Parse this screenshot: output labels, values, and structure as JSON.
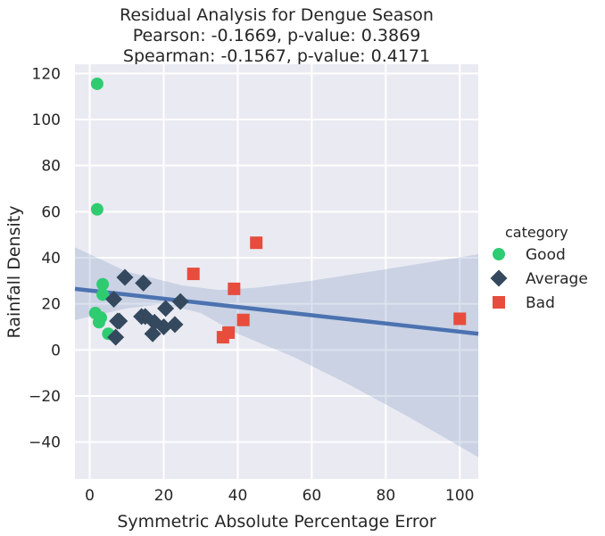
{
  "chart_data": {
    "type": "scatter",
    "title_lines": [
      "Residual Analysis for Dengue Season",
      "Pearson: -0.1669, p-value: 0.3869",
      "Spearman: -0.1567, p-value: 0.4171"
    ],
    "xlabel": "Symmetric Absolute Percentage Error",
    "ylabel": "Rainfall Density",
    "xlim": [
      -4,
      105
    ],
    "ylim": [
      -56,
      124
    ],
    "xticks": [
      0,
      20,
      40,
      60,
      80,
      100
    ],
    "yticks": [
      -40,
      -20,
      0,
      20,
      40,
      60,
      80,
      100,
      120
    ],
    "grid": true,
    "legend_title": "category",
    "legend_position": "right",
    "series": [
      {
        "name": "Good",
        "marker": "circle",
        "color": "#2ecc71",
        "points": [
          [
            2,
            115.5
          ],
          [
            2,
            61
          ],
          [
            1.5,
            16
          ],
          [
            2.5,
            12
          ],
          [
            3,
            14
          ],
          [
            3.5,
            24
          ],
          [
            3.5,
            28.5
          ],
          [
            5,
            7
          ]
        ]
      },
      {
        "name": "Average",
        "marker": "diamond",
        "color": "#34495e",
        "points": [
          [
            9.5,
            31.5
          ],
          [
            14.5,
            29
          ],
          [
            6.5,
            22
          ],
          [
            24.5,
            21
          ],
          [
            20.5,
            18
          ],
          [
            14,
            14.5
          ],
          [
            15,
            14.5
          ],
          [
            7.5,
            12.5
          ],
          [
            8,
            12.5
          ],
          [
            17.5,
            12
          ],
          [
            23,
            11
          ],
          [
            20,
            10
          ],
          [
            17,
            7
          ],
          [
            7,
            5.5
          ]
        ]
      },
      {
        "name": "Bad",
        "marker": "square",
        "color": "#e74c3c",
        "points": [
          [
            45,
            46.5
          ],
          [
            28,
            33
          ],
          [
            39,
            26.5
          ],
          [
            41.5,
            13
          ],
          [
            100,
            13.5
          ],
          [
            37.5,
            7.5
          ],
          [
            36,
            5.5
          ]
        ]
      }
    ],
    "regression": {
      "line": [
        [
          -4,
          26.5
        ],
        [
          105,
          7
        ]
      ],
      "color": "#4c72b0",
      "ci_upper": [
        [
          -4,
          44.5
        ],
        [
          10,
          34
        ],
        [
          25,
          28
        ],
        [
          35,
          26
        ],
        [
          45,
          27
        ],
        [
          60,
          30
        ],
        [
          80,
          35
        ],
        [
          105,
          41.5
        ]
      ],
      "ci_lower": [
        [
          -4,
          13
        ],
        [
          10,
          18
        ],
        [
          20,
          20
        ],
        [
          30,
          16
        ],
        [
          40,
          7
        ],
        [
          55,
          -3
        ],
        [
          70,
          -15
        ],
        [
          85,
          -28
        ],
        [
          105,
          -46.5
        ]
      ]
    }
  }
}
